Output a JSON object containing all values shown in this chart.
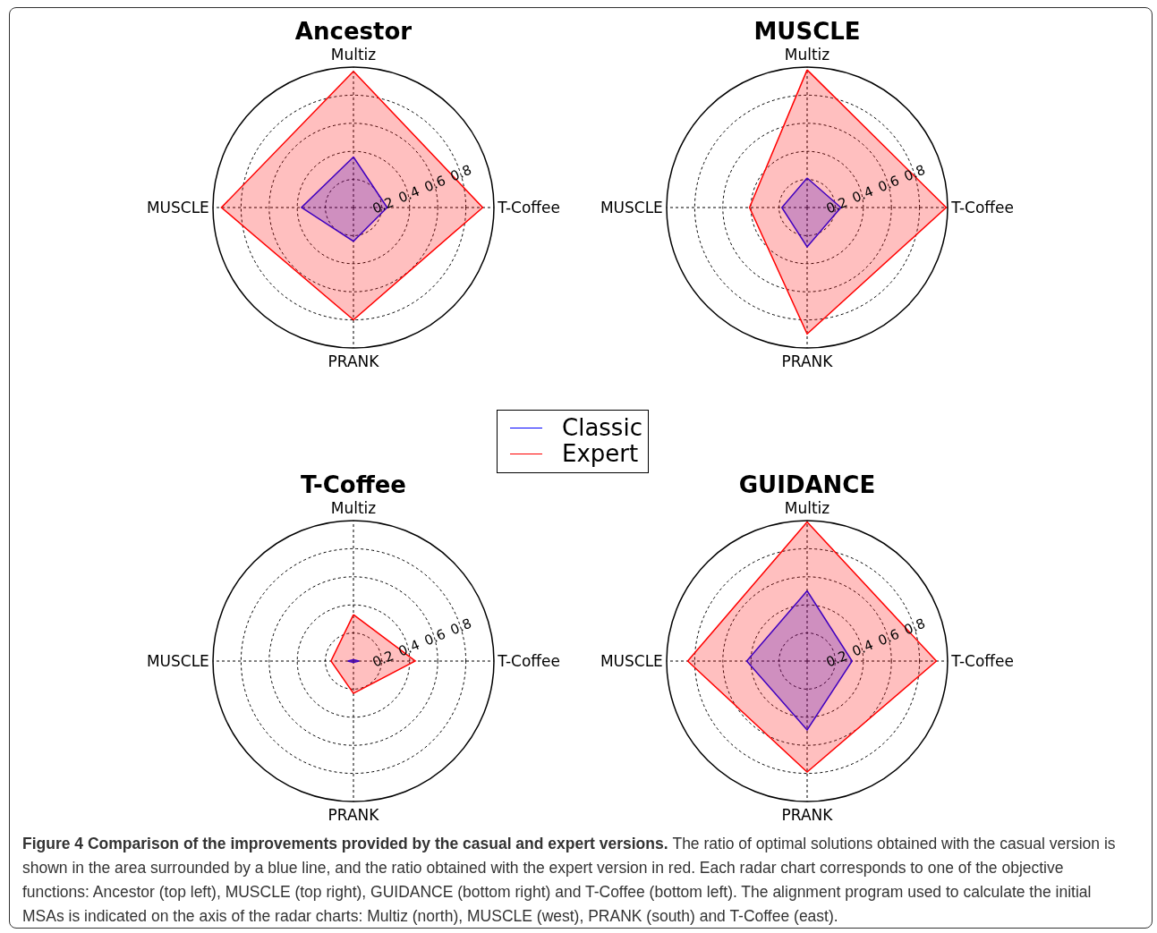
{
  "chart_data": [
    {
      "type": "radar",
      "title": "Ancestor",
      "categories": [
        "Multiz",
        "T-Coffee",
        "PRANK",
        "MUSCLE"
      ],
      "ylim": [
        0,
        1
      ],
      "yticks": [
        0.2,
        0.4,
        0.6,
        0.8
      ],
      "grid": true,
      "legend": "bottom right",
      "series": [
        {
          "name": "Classic",
          "color": "#0000ff",
          "values": [
            0.36,
            0.24,
            0.24,
            0.37
          ]
        },
        {
          "name": "Expert",
          "color": "#ff0000",
          "values": [
            0.97,
            0.92,
            0.8,
            0.94
          ]
        }
      ],
      "annotations": [
        "Figure 4 Comparison of the improvements provided by the casual and expert versions.",
        "The ratio of optimal solutions obtained with the casual version is shown in the area surrounded by a blue line, and the ratio obtained with the expert version in red. Each radar chart corresponds to one of the objective functions: Ancestor (top left), MUSCLE (top right), GUIDANCE (bottom right) and T-Coffee (bottom left). The alignment program used to calculate the initial MSAs is indicated on the axis of the radar charts: Multiz (north), MUSCLE (west), PRANK (south) and T-Coffee (east)."
      ]
    },
    {
      "type": "radar",
      "title": "MUSCLE",
      "categories": [
        "Multiz",
        "T-Coffee",
        "PRANK",
        "MUSCLE"
      ],
      "ylim": [
        0,
        1
      ],
      "yticks": [
        0.2,
        0.4,
        0.6,
        0.8
      ],
      "grid": true,
      "series": [
        {
          "color": "#0000ff",
          "values": [
            0.21,
            0.24,
            0.28,
            0.18
          ]
        },
        {
          "color": "#ff0000",
          "values": [
            0.98,
            0.99,
            0.9,
            0.41
          ]
        }
      ]
    },
    {
      "type": "radar",
      "title": "T-Coffee",
      "categories": [
        "Multiz",
        "T-Coffee",
        "PRANK",
        "MUSCLE"
      ],
      "ylim": [
        0,
        1
      ],
      "yticks": [
        0.2,
        0.4,
        0.6,
        0.8
      ],
      "grid": true,
      "series": [
        {
          "color": "#0000ff",
          "values": [
            0.01,
            0.04,
            0.01,
            0.04
          ]
        },
        {
          "color": "#ff0000",
          "values": [
            0.33,
            0.44,
            0.23,
            0.16
          ]
        }
      ]
    },
    {
      "type": "radar",
      "title": "GUIDANCE",
      "categories": [
        "Multiz",
        "T-Coffee",
        "PRANK",
        "MUSCLE"
      ],
      "ylim": [
        0,
        1
      ],
      "yticks": [
        0.2,
        0.4,
        0.6,
        0.8
      ],
      "grid": true,
      "series": [
        {
          "color": "#0000ff",
          "values": [
            0.5,
            0.32,
            0.49,
            0.43
          ]
        },
        {
          "color": "#ff0000",
          "values": [
            0.99,
            0.92,
            0.79,
            0.85
          ]
        }
      ]
    }
  ]
}
